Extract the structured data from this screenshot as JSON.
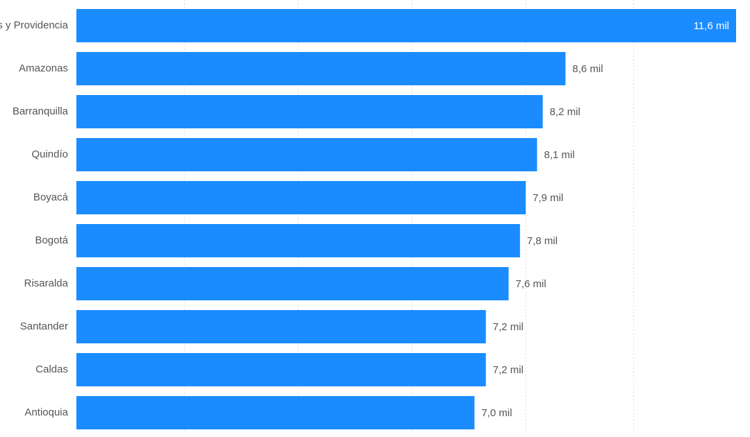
{
  "chart_data": {
    "type": "bar",
    "orientation": "horizontal",
    "categories": [
      "San Andrés y Providencia",
      "Amazonas",
      "Barranquilla",
      "Quindío",
      "Boyacá",
      "Bogotá",
      "Risaralda",
      "Santander",
      "Caldas",
      "Antioquia"
    ],
    "values": [
      11.6,
      8.6,
      8.2,
      8.1,
      7.9,
      7.8,
      7.6,
      7.2,
      7.2,
      7.0
    ],
    "data_labels": [
      "11,6 mil",
      "8,6 mil",
      "8,2 mil",
      "8,1 mil",
      "7,9 mil",
      "7,8 mil",
      "7,6 mil",
      "7,2 mil",
      "7,2 mil",
      "7,0 mil"
    ],
    "value_unit": "mil",
    "xlim": [
      0,
      11.6
    ],
    "grid": true,
    "legend": "none",
    "bar_color": "#1a8cff"
  }
}
